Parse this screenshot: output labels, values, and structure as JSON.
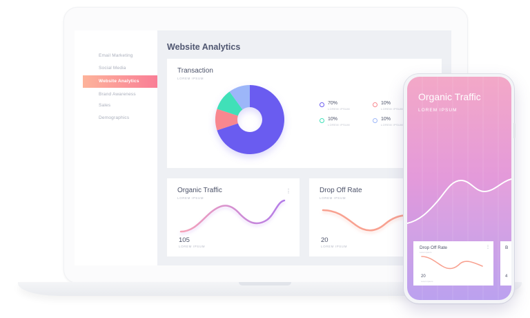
{
  "sidebar": {
    "items": [
      {
        "label": "Email Marketing",
        "active": false
      },
      {
        "label": "Social Media",
        "active": false
      },
      {
        "label": "Website Analytics",
        "active": true
      },
      {
        "label": "Brand Awareness",
        "active": false
      },
      {
        "label": "Sales",
        "active": false
      },
      {
        "label": "Demographics",
        "active": false
      }
    ]
  },
  "main": {
    "title": "Website Analytics",
    "transaction": {
      "title": "Transaction",
      "subtitle": "LOREM IPSUM",
      "legend": [
        {
          "value": "70%",
          "label": "LOREM IPSUM",
          "color": "#6b5cf0"
        },
        {
          "value": "10%",
          "label": "LOREM IPSUM",
          "color": "#f8878f"
        },
        {
          "value": "10%",
          "label": "LOREM IPSUM",
          "color": "#3fe0b8"
        },
        {
          "value": "10%",
          "label": "LOREM IPSUM",
          "color": "#9cb6f9"
        }
      ]
    },
    "organic": {
      "title": "Organic Traffic",
      "subtitle": "LOREM IPSUM",
      "value": "105",
      "value_label": "LOREM IPSUM",
      "menu": "⋮"
    },
    "dropoff": {
      "title": "Drop Off Rate",
      "subtitle": "LOREM IPSUM",
      "value": "20",
      "value_label": "LOREM IPSUM"
    }
  },
  "phone": {
    "title": "Organic Traffic",
    "subtitle": "LOREM IPSUM",
    "card": {
      "title": "Drop Off Rate",
      "subtitle": "Lorem ipsum",
      "value": "20",
      "value_label": "Lorem ipsum",
      "menu": "⋮"
    },
    "card2_peek": {
      "title": "B",
      "value": "4"
    }
  },
  "chart_data": [
    {
      "type": "pie",
      "labels": [
        "70%",
        "10%",
        "10%",
        "10%"
      ],
      "values": [
        70,
        10,
        10,
        10
      ],
      "colors": [
        "#6b5cf0",
        "#f8878f",
        "#3fe0b8",
        "#9cb6f9"
      ]
    }
  ]
}
